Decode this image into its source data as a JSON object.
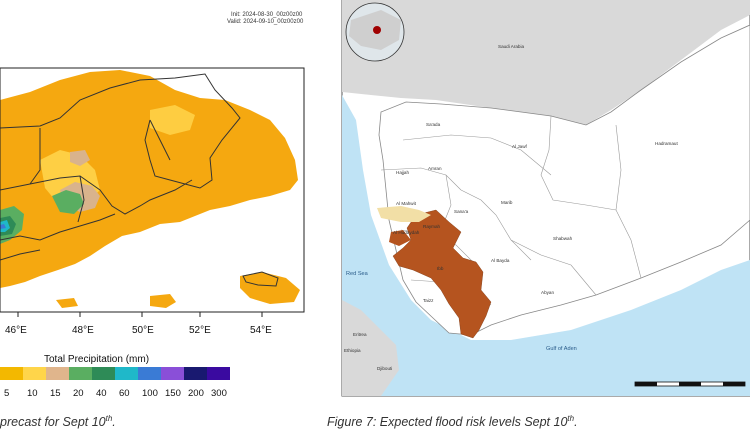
{
  "left_panel": {
    "init_text": "Init: 2024-08-30_00z00z00",
    "valid_text": "Valid: 2024-09-10_00z00z00",
    "x_ticks": [
      "46°E",
      "48°E",
      "50°E",
      "52°E",
      "54°E"
    ],
    "legend_title": "Total Precipitation  (mm)",
    "colorbar_labels": [
      "5",
      "10",
      "15",
      "20",
      "40",
      "60",
      "100",
      "150",
      "200",
      "300"
    ],
    "colorbar_colors": [
      "#f3b800",
      "#ffd54a",
      "#e0b58c",
      "#5aae61",
      "#2e8b57",
      "#1fb8c9",
      "#3a7bd5",
      "#8a4fd8",
      "#191970",
      "#3a0aa0"
    ],
    "caption": "precast for Sept 10",
    "caption_sup": "th",
    "caption_end": "."
  },
  "right_panel": {
    "country_labels": {
      "saudi_arabia": "Saudi Arabia"
    },
    "sea_labels": {
      "red_sea": "Red Sea",
      "gulf_of_aden": "Gulf of Aden"
    },
    "neighbor_labels": {
      "eritrea": "Eritrea",
      "djibouti": "Djibouti",
      "ethiopia": "Ethiopia"
    },
    "governorates": {
      "saada": "Sa'ada",
      "al_jawf": "Al Jawf",
      "hadramaut": "Hadramaut",
      "amran": "Amran",
      "hajjah": "Hajjah",
      "marib": "Marib",
      "sanaa": "Sana'a",
      "al_mahwit": "Al Mahwit",
      "hudaydah": "Al Hudaydah",
      "raymah": "Raymah",
      "shabwah": "Shabwah",
      "al_bayda": "Al Bayda",
      "ibb": "Ibb",
      "abyan": "Abyan",
      "taizz": "Taizz"
    },
    "caption": "Figure 7: Expected flood risk levels Sept 10",
    "caption_sup": "th",
    "caption_end": "."
  }
}
